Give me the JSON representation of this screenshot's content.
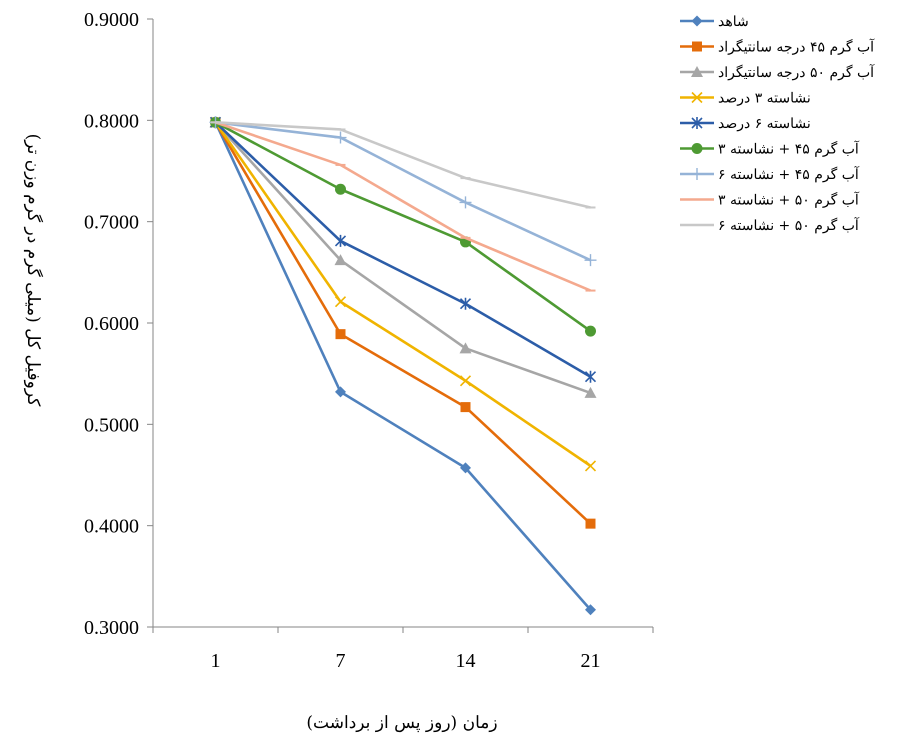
{
  "chart_data": {
    "type": "line",
    "title": "",
    "xlabel": "زمان (روز پس از برداشت)",
    "ylabel": "کروفیل کل (میلی گرم در گرم وزن تر)",
    "categories": [
      "1",
      "7",
      "14",
      "21"
    ],
    "y_ticks": [
      "0.3000",
      "0.4000",
      "0.5000",
      "0.6000",
      "0.7000",
      "0.8000",
      "0.9000"
    ],
    "ylim": [
      0.3,
      0.9
    ],
    "grid": false,
    "legend_position": "right",
    "series": [
      {
        "name": "شاهد",
        "color": "#4F81BD",
        "marker": "diamond",
        "values": [
          0.798,
          0.532,
          0.457,
          0.317
        ]
      },
      {
        "name": "آب گرم ۴۵ درجه سانتیگراد",
        "color": "#E46C0A",
        "marker": "square",
        "values": [
          0.798,
          0.589,
          0.517,
          0.402
        ]
      },
      {
        "name": "آب گرم ۵۰ درجه سانتیگراد",
        "color": "#A6A6A6",
        "marker": "triangle",
        "values": [
          0.798,
          0.662,
          0.575,
          0.531
        ]
      },
      {
        "name": "نشاسته ۳ درصد",
        "color": "#F0B400",
        "marker": "x",
        "values": [
          0.798,
          0.621,
          0.543,
          0.459
        ]
      },
      {
        "name": "نشاسته ۶ درصد",
        "color": "#2C5DA8",
        "marker": "star",
        "values": [
          0.798,
          0.681,
          0.619,
          0.547
        ]
      },
      {
        "name": "آب گرم ۴۵ + نشاسته ۳",
        "color": "#4E9A33",
        "marker": "circle",
        "values": [
          0.798,
          0.732,
          0.68,
          0.592
        ]
      },
      {
        "name": "آب گرم ۴۵ + نشاسته ۶",
        "color": "#95B3D7",
        "marker": "plus",
        "values": [
          0.798,
          0.783,
          0.719,
          0.662
        ]
      },
      {
        "name": "آب گرم ۵۰ + نشاسته ۳",
        "color": "#F4A98E",
        "marker": "dash",
        "values": [
          0.798,
          0.756,
          0.684,
          0.632
        ]
      },
      {
        "name": "آب گرم ۵۰ + نشاسته ۶",
        "color": "#C8C8C8",
        "marker": "dash",
        "values": [
          0.798,
          0.791,
          0.743,
          0.714
        ]
      }
    ]
  }
}
